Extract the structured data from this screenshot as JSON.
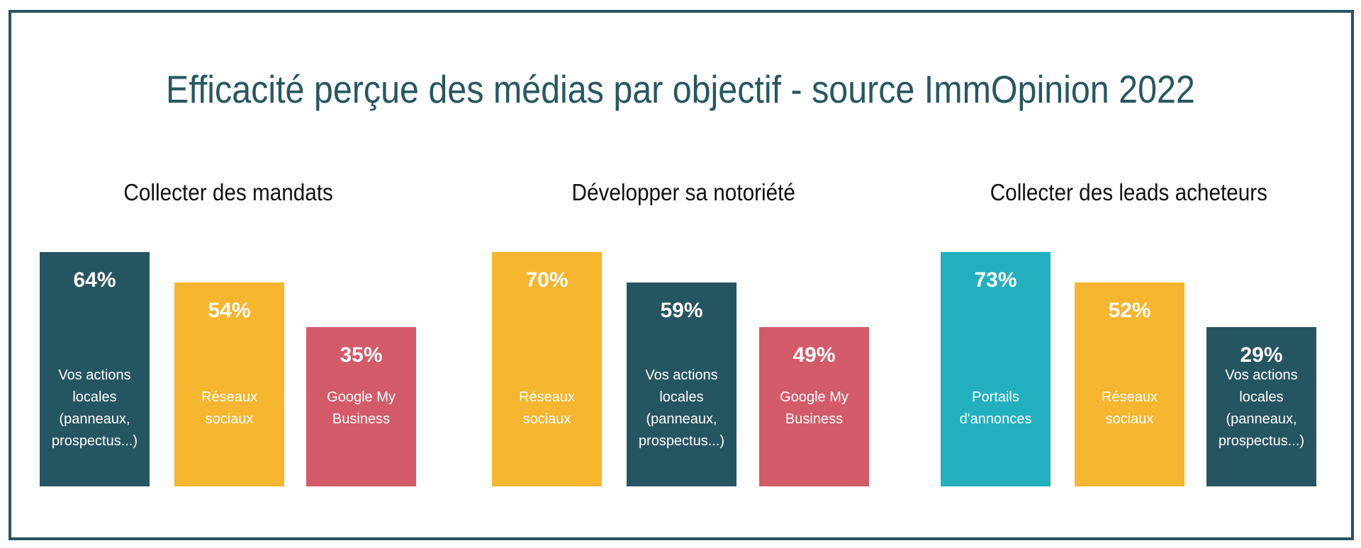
{
  "title": "Efficacité perçue des médias par objectif - source ImmOpinion 2022",
  "chart_data": [
    {
      "type": "bar",
      "title": "Collecter des mandats",
      "categories": [
        "Vos actions locales (panneaux, prospectus...)",
        "Réseaux sociaux",
        "Google My Business"
      ],
      "values": [
        64,
        54,
        35
      ],
      "value_labels": [
        "64%",
        "54%",
        "35%"
      ],
      "label_lines": [
        [
          "Vos actions",
          "locales",
          "(panneaux,",
          "prospectus...)"
        ],
        [
          "Réseaux",
          "sociaux"
        ],
        [
          "Google My",
          "Business"
        ]
      ],
      "colors": [
        "#265562",
        "#f6b52e",
        "#d35b69"
      ]
    },
    {
      "type": "bar",
      "title": "Développer sa notoriété",
      "categories": [
        "Réseaux sociaux",
        "Vos actions locales (panneaux, prospectus...)",
        "Google My Business"
      ],
      "values": [
        70,
        59,
        49
      ],
      "value_labels": [
        "70%",
        "59%",
        "49%"
      ],
      "label_lines": [
        [
          "Réseaux",
          "sociaux"
        ],
        [
          "Vos actions",
          "locales",
          "(panneaux,",
          "prospectus...)"
        ],
        [
          "Google My",
          "Business"
        ]
      ],
      "colors": [
        "#f6b52e",
        "#265562",
        "#d35b69"
      ]
    },
    {
      "type": "bar",
      "title": "Collecter des leads acheteurs",
      "categories": [
        "Portails d'annonces",
        "Réseaux sociaux",
        "Vos actions locales (panneaux, prospectus...)"
      ],
      "values": [
        73,
        52,
        29
      ],
      "value_labels": [
        "73%",
        "52%",
        "29%"
      ],
      "label_lines": [
        [
          "Portails",
          "d'annonces"
        ],
        [
          "Réseaux",
          "sociaux"
        ],
        [
          "Vos actions",
          "locales",
          "(panneaux,",
          "prospectus...)"
        ]
      ],
      "colors": [
        "#22b0bf",
        "#f6b52e",
        "#265562"
      ]
    }
  ]
}
